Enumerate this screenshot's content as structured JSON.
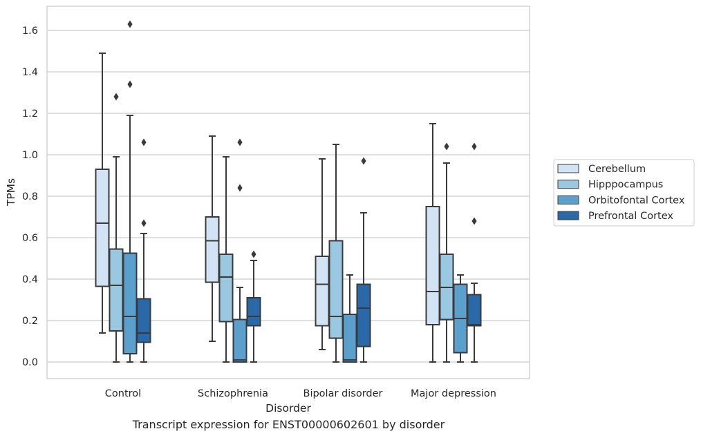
{
  "chart_data": {
    "type": "box",
    "caption": "Transcript expression for ENST00000602601 by disorder",
    "xlabel": "Disorder",
    "ylabel": "TPMs",
    "ylim": [
      -0.08,
      1.72
    ],
    "yticks": [
      "0.0",
      "0.2",
      "0.4",
      "0.6",
      "0.8",
      "1.0",
      "1.2",
      "1.4",
      "1.6"
    ],
    "grid": true,
    "legend_position": "right",
    "categories": [
      "Control",
      "Schizophrenia",
      "Bipolar disorder",
      "Major depression"
    ],
    "series": [
      {
        "name": "Cerebellum",
        "color": "#d2e3f3",
        "boxes": [
          {
            "whisker_low": 0.14,
            "q1": 0.365,
            "median": 0.67,
            "q3": 0.93,
            "whisker_high": 1.49,
            "outliers": []
          },
          {
            "whisker_low": 0.1,
            "q1": 0.385,
            "median": 0.585,
            "q3": 0.7,
            "whisker_high": 1.09,
            "outliers": []
          },
          {
            "whisker_low": 0.06,
            "q1": 0.175,
            "median": 0.375,
            "q3": 0.51,
            "whisker_high": 0.98,
            "outliers": []
          },
          {
            "whisker_low": 0.0,
            "q1": 0.18,
            "median": 0.34,
            "q3": 0.75,
            "whisker_high": 1.15,
            "outliers": []
          }
        ]
      },
      {
        "name": "Hipppocampus",
        "color": "#9ac8e0",
        "boxes": [
          {
            "whisker_low": 0.0,
            "q1": 0.15,
            "median": 0.37,
            "q3": 0.545,
            "whisker_high": 0.99,
            "outliers": [
              1.28
            ]
          },
          {
            "whisker_low": 0.0,
            "q1": 0.195,
            "median": 0.41,
            "q3": 0.52,
            "whisker_high": 0.99,
            "outliers": []
          },
          {
            "whisker_low": 0.0,
            "q1": 0.115,
            "median": 0.22,
            "q3": 0.585,
            "whisker_high": 1.05,
            "outliers": []
          },
          {
            "whisker_low": 0.0,
            "q1": 0.205,
            "median": 0.36,
            "q3": 0.52,
            "whisker_high": 0.96,
            "outliers": [
              1.04
            ]
          }
        ]
      },
      {
        "name": "Orbitofontal Cortex",
        "color": "#5b9fcd",
        "boxes": [
          {
            "whisker_low": 0.0,
            "q1": 0.04,
            "median": 0.22,
            "q3": 0.525,
            "whisker_high": 1.19,
            "outliers": [
              1.34,
              1.63
            ]
          },
          {
            "whisker_low": 0.0,
            "q1": 0.0,
            "median": 0.01,
            "q3": 0.205,
            "whisker_high": 0.36,
            "outliers": [
              0.84,
              1.06
            ]
          },
          {
            "whisker_low": 0.0,
            "q1": 0.0,
            "median": 0.01,
            "q3": 0.23,
            "whisker_high": 0.42,
            "outliers": []
          },
          {
            "whisker_low": 0.0,
            "q1": 0.045,
            "median": 0.21,
            "q3": 0.375,
            "whisker_high": 0.42,
            "outliers": []
          }
        ]
      },
      {
        "name": "Prefrontal Cortex",
        "color": "#2a69a8",
        "boxes": [
          {
            "whisker_low": 0.0,
            "q1": 0.095,
            "median": 0.14,
            "q3": 0.305,
            "whisker_high": 0.62,
            "outliers": [
              0.67,
              1.06
            ]
          },
          {
            "whisker_low": 0.0,
            "q1": 0.175,
            "median": 0.22,
            "q3": 0.31,
            "whisker_high": 0.49,
            "outliers": [
              0.52
            ]
          },
          {
            "whisker_low": 0.0,
            "q1": 0.075,
            "median": 0.26,
            "q3": 0.375,
            "whisker_high": 0.72,
            "outliers": [
              0.97
            ]
          },
          {
            "whisker_low": 0.0,
            "q1": 0.175,
            "median": 0.18,
            "q3": 0.325,
            "whisker_high": 0.38,
            "outliers": [
              0.68,
              1.04
            ]
          }
        ]
      }
    ]
  }
}
